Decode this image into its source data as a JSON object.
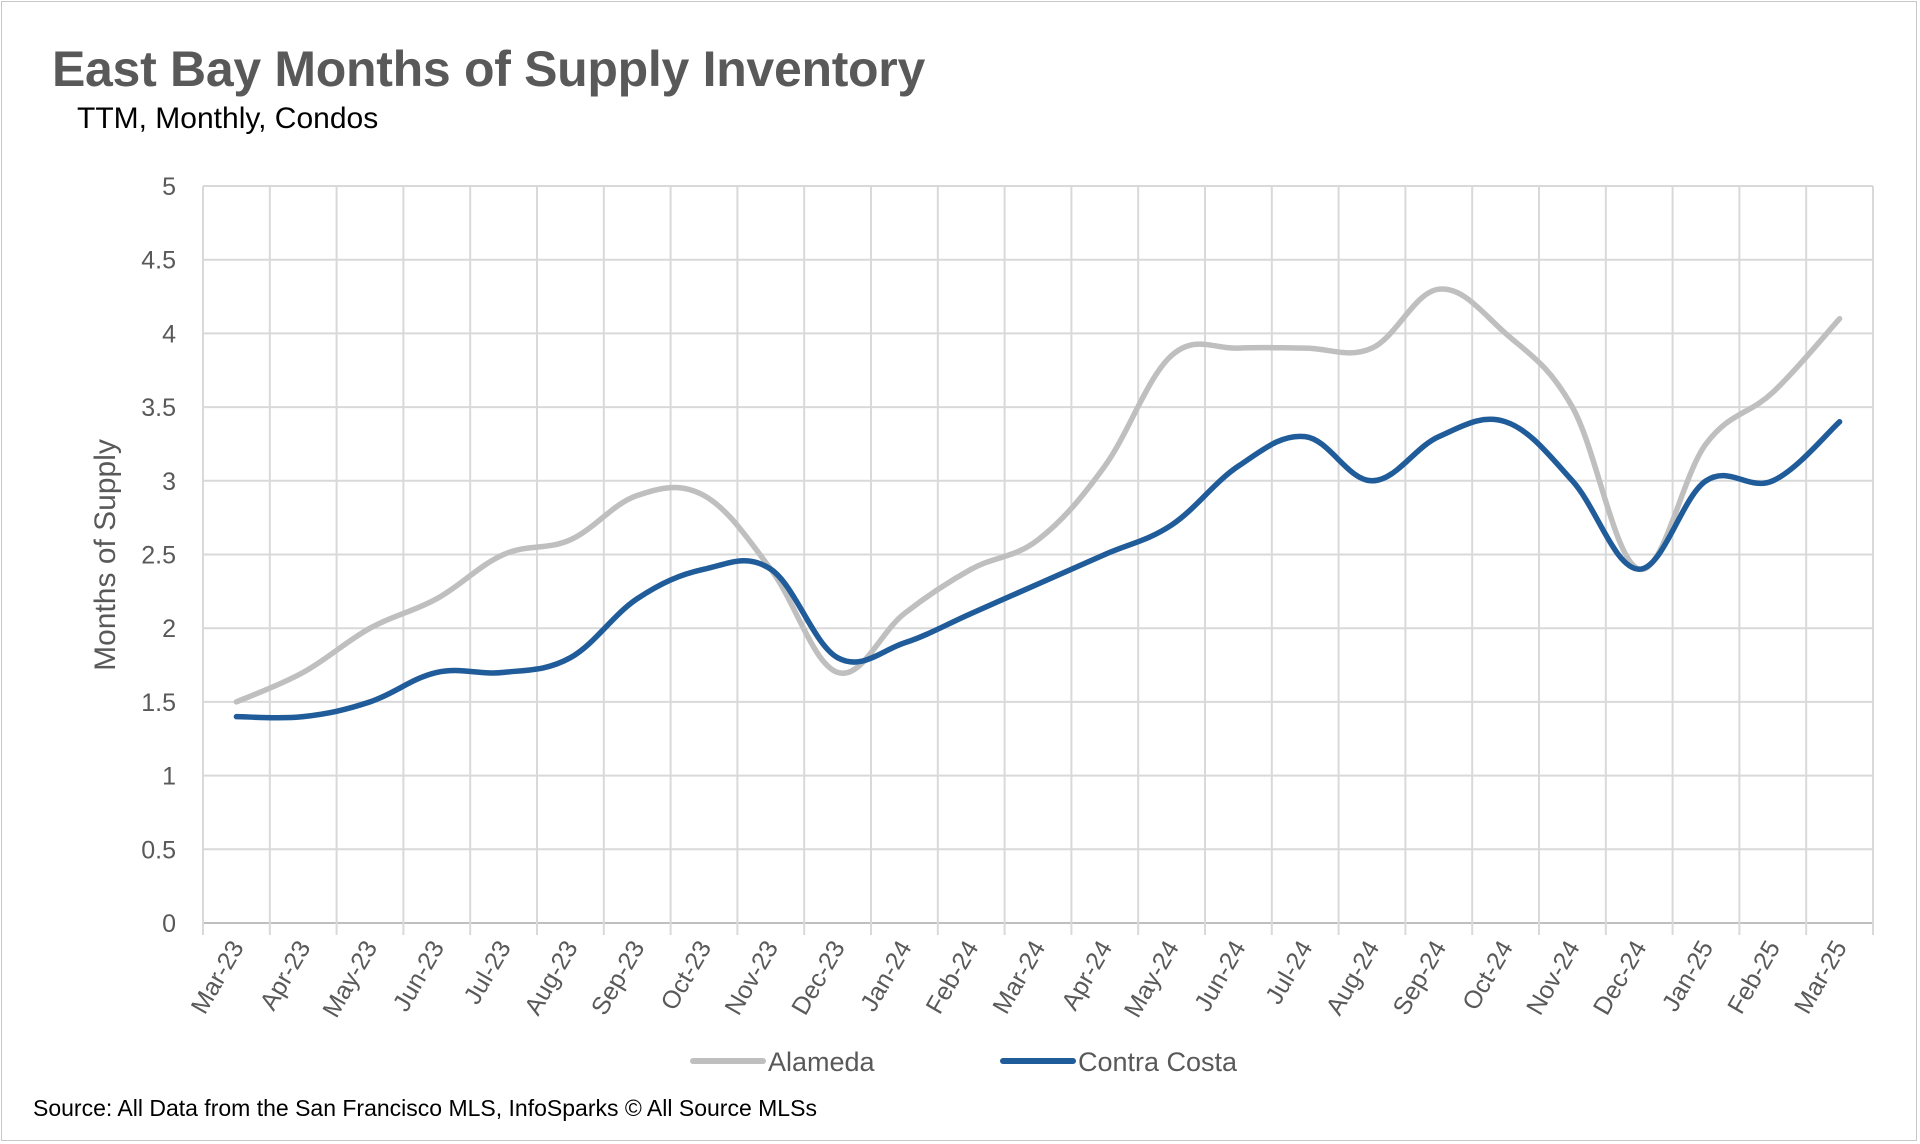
{
  "chart_data": {
    "type": "line",
    "title": "East Bay Months of Supply Inventory",
    "subtitle": "TTM, Monthly, Condos",
    "ylabel": "Months of Supply",
    "xlabel": "",
    "ylim": [
      0,
      5
    ],
    "yticks": [
      "0",
      "0.5",
      "1",
      "1.5",
      "2",
      "2.5",
      "3",
      "3.5",
      "4",
      "4.5",
      "5"
    ],
    "categories": [
      "Mar-23",
      "Apr-23",
      "May-23",
      "Jun-23",
      "Jul-23",
      "Aug-23",
      "Sep-23",
      "Oct-23",
      "Nov-23",
      "Dec-23",
      "Jan-24",
      "Feb-24",
      "Mar-24",
      "Apr-24",
      "May-24",
      "Jun-24",
      "Jul-24",
      "Aug-24",
      "Sep-24",
      "Oct-24",
      "Nov-24",
      "Dec-24",
      "Jan-25",
      "Feb-25",
      "Mar-25"
    ],
    "series": [
      {
        "name": "Alameda",
        "color": "#bfbfbf",
        "values": [
          1.5,
          1.7,
          2.0,
          2.2,
          2.5,
          2.6,
          2.9,
          2.9,
          2.4,
          1.7,
          2.1,
          2.4,
          2.6,
          3.1,
          3.85,
          3.9,
          3.9,
          3.9,
          4.3,
          4.0,
          3.5,
          2.4,
          3.25,
          3.6,
          4.1
        ]
      },
      {
        "name": "Contra Costa",
        "color": "#1f5c99",
        "values": [
          1.4,
          1.4,
          1.5,
          1.7,
          1.7,
          1.8,
          2.2,
          2.4,
          2.4,
          1.8,
          1.9,
          2.1,
          2.3,
          2.5,
          2.7,
          3.1,
          3.3,
          3.0,
          3.3,
          3.4,
          3.0,
          2.4,
          3.0,
          3.0,
          3.4
        ]
      }
    ],
    "grid": true,
    "legend": "bottom-center"
  },
  "source": "Source: All Data from the San Francisco MLS, InfoSparks © All Source MLSs"
}
